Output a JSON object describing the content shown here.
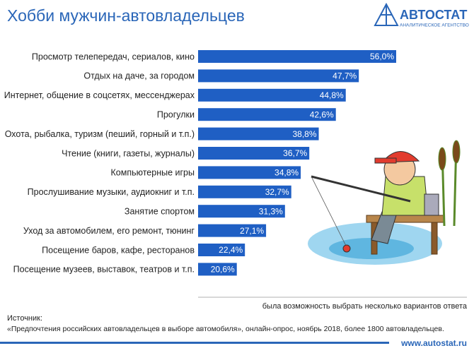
{
  "chart_data": {
    "type": "bar",
    "orientation": "horizontal",
    "title": "Хобби мужчин-автовладельцев",
    "logo": "АВТОСТАТ",
    "logo_subtitle": "АНАЛИТИЧЕСКОЕ АГЕНТСТВО",
    "categories": [
      "Просмотр телепередач, сериалов, кино",
      "Отдых на даче, за городом",
      "Интернет, общение в соцсетях, мессенджерах",
      "Прогулки",
      "Охота, рыбалка, туризм (пеший, горный и т.п.)",
      "Чтение (книги, газеты, журналы)",
      "Компьютерные игры",
      "Прослушивание музыки, аудиокниг и т.п.",
      "Занятие спортом",
      "Уход за автомобилем, его ремонт, тюнинг",
      "Посещение баров, кафе, ресторанов",
      "Посещение музеев, выставок, театров и т.п."
    ],
    "values": [
      56.0,
      47.7,
      44.8,
      42.6,
      38.8,
      36.7,
      34.8,
      32.7,
      31.3,
      27.1,
      22.4,
      20.6
    ],
    "value_labels": [
      "56,0%",
      "47,7%",
      "44,8%",
      "42,6%",
      "38,8%",
      "36,7%",
      "34,8%",
      "32,7%",
      "31,3%",
      "27,1%",
      "22,4%",
      "20,6%"
    ],
    "color": "#1f5fc4",
    "xlim": [
      12,
      56
    ],
    "note": "была возможность выбрать несколько вариантов ответа",
    "source_label": "Источник:",
    "source": "«Предпочтения российских автовладельцев в выборе автомобиля», онлайн-опрос, ноябрь 2018, более 1800 автовладельцев.",
    "url": "www.autostat.ru"
  }
}
